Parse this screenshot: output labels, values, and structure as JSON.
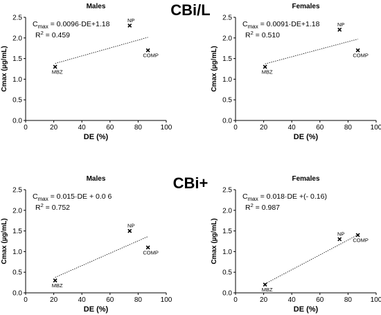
{
  "sections": [
    {
      "title": "CBi/L"
    },
    {
      "title": "CBi+"
    }
  ],
  "chart_data": [
    {
      "type": "scatter",
      "section": "CBi/L",
      "title": "Males",
      "xlabel": "DE (%)",
      "ylabel": "Cmax (µg/mL)",
      "xlim": [
        0,
        100
      ],
      "ylim": [
        0,
        2.5
      ],
      "xticks": [
        0,
        20,
        40,
        60,
        80,
        100
      ],
      "yticks": [
        "0.0",
        "0.5",
        "1.0",
        "1.5",
        "2.0",
        "2.5"
      ],
      "grid": false,
      "points": [
        {
          "label": "MBZ",
          "x": 21,
          "y": 1.3
        },
        {
          "label": "NP",
          "x": 74,
          "y": 2.3
        },
        {
          "label": "COMP",
          "x": 87,
          "y": 1.7
        }
      ],
      "trendline": {
        "x": [
          21,
          87
        ],
        "slope": 0.0096,
        "intercept": 1.18
      },
      "equation": {
        "lhs_main": "C",
        "lhs_sub": "max",
        "rhs": " = 0.0096·DE+1.18"
      },
      "r2": {
        "base": "R",
        "sup": "2",
        "rhs": " = 0.459"
      }
    },
    {
      "type": "scatter",
      "section": "CBi/L",
      "title": "Females",
      "xlabel": "DE (%)",
      "ylabel": "Cmax (µg/mL)",
      "xlim": [
        0,
        100
      ],
      "ylim": [
        0,
        2.5
      ],
      "xticks": [
        0,
        20,
        40,
        60,
        80,
        100
      ],
      "yticks": [
        "0.0",
        "0.5",
        "1.0",
        "1.5",
        "2.0",
        "2.5"
      ],
      "grid": false,
      "points": [
        {
          "label": "MBZ",
          "x": 21,
          "y": 1.3
        },
        {
          "label": "NP",
          "x": 74,
          "y": 2.2
        },
        {
          "label": "COMP",
          "x": 87,
          "y": 1.7
        }
      ],
      "trendline": {
        "x": [
          21,
          87
        ],
        "slope": 0.0091,
        "intercept": 1.18
      },
      "equation": {
        "lhs_main": "C",
        "lhs_sub": "max",
        "rhs": " = 0.0091·DE+1.18"
      },
      "r2": {
        "base": "R",
        "sup": "2",
        "rhs": " = 0.510"
      }
    },
    {
      "type": "scatter",
      "section": "CBi+",
      "title": "Males",
      "xlabel": "DE (%)",
      "ylabel": "Cmax (µg/mL)",
      "xlim": [
        0,
        100
      ],
      "ylim": [
        0,
        2.5
      ],
      "xticks": [
        0,
        20,
        40,
        60,
        80,
        100
      ],
      "yticks": [
        "0.0",
        "0.5",
        "1.0",
        "1.5",
        "2.0",
        "2.5"
      ],
      "grid": false,
      "points": [
        {
          "label": "MBZ",
          "x": 21,
          "y": 0.3
        },
        {
          "label": "NP",
          "x": 74,
          "y": 1.5
        },
        {
          "label": "COMP",
          "x": 87,
          "y": 1.1
        }
      ],
      "trendline": {
        "x": [
          21,
          87
        ],
        "slope": 0.015,
        "intercept": 0.06
      },
      "equation": {
        "lhs_main": "C",
        "lhs_sub": "max",
        "rhs": " = 0.015·DE + 0.0 6"
      },
      "r2": {
        "base": "R",
        "sup": "2",
        "rhs": " = 0.752"
      }
    },
    {
      "type": "scatter",
      "section": "CBi+",
      "title": "Females",
      "xlabel": "DE (%)",
      "ylabel": "Cmax (µg/mL)",
      "xlim": [
        0,
        100
      ],
      "ylim": [
        0,
        2.5
      ],
      "xticks": [
        0,
        20,
        40,
        60,
        80,
        100
      ],
      "yticks": [
        "0.0",
        "0.5",
        "1.0",
        "1.5",
        "2.0",
        "2.5"
      ],
      "grid": false,
      "points": [
        {
          "label": "MBZ",
          "x": 21,
          "y": 0.2
        },
        {
          "label": "NP",
          "x": 74,
          "y": 1.3
        },
        {
          "label": "COMP",
          "x": 87,
          "y": 1.4
        }
      ],
      "trendline": {
        "x": [
          21,
          87
        ],
        "slope": 0.018,
        "intercept": -0.16
      },
      "equation": {
        "lhs_main": "C",
        "lhs_sub": "max",
        "rhs": " = 0.018·DE +(- 0.16)"
      },
      "r2": {
        "base": "R",
        "sup": "2",
        "rhs": " = 0.987"
      }
    }
  ]
}
